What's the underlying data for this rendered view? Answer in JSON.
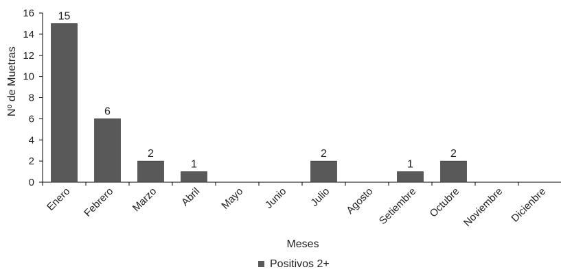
{
  "chart_data": {
    "type": "bar",
    "categories": [
      "Enero",
      "Febrero",
      "Marzo",
      "Abril",
      "Mayo",
      "Junio",
      "Julio",
      "Agosto",
      "Setiembre",
      "Octubre",
      "Noviembre",
      "Dicienbre"
    ],
    "series": [
      {
        "name": "Positivos 2+",
        "values": [
          15,
          6,
          2,
          1,
          0,
          0,
          2,
          0,
          1,
          2,
          0,
          0
        ],
        "data_labels": [
          "15",
          "6",
          "2",
          "1",
          "",
          "",
          "2",
          "",
          "1",
          "2",
          "",
          ""
        ],
        "color": "#595959"
      }
    ],
    "title": "",
    "xlabel": "Meses",
    "ylabel": "Nº de Muetras",
    "ylim": [
      0,
      16
    ],
    "yticks": [
      0,
      2,
      4,
      6,
      8,
      10,
      12,
      14,
      16
    ],
    "grid": false,
    "legend_position": "bottom"
  }
}
